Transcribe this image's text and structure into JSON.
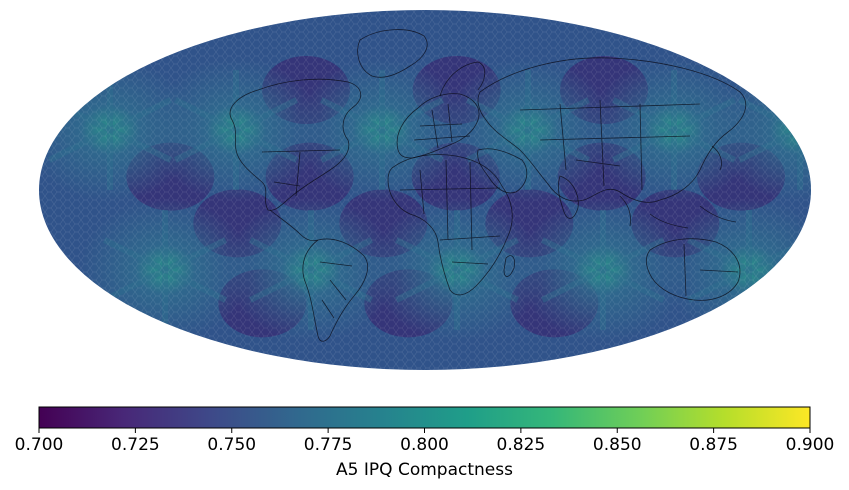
{
  "map": {
    "projection": "mollweide",
    "colormap": "viridis",
    "cell_color_range": [
      "#3a1d6b",
      "#2f6e8e"
    ],
    "node_color": "#2a9a8a",
    "cell_edge_color": "#ffffff",
    "coastline_color": "#0a0a14"
  },
  "colorbar": {
    "label": "A5 IPQ Compactness",
    "min": 0.7,
    "max": 0.9,
    "ticks": [
      "0.700",
      "0.725",
      "0.750",
      "0.775",
      "0.800",
      "0.825",
      "0.850",
      "0.875",
      "0.900"
    ],
    "stops": [
      "#440154",
      "#482878",
      "#3e4989",
      "#31688e",
      "#26828e",
      "#1f9e89",
      "#35b779",
      "#6ece58",
      "#b5de2b",
      "#fde725"
    ]
  }
}
